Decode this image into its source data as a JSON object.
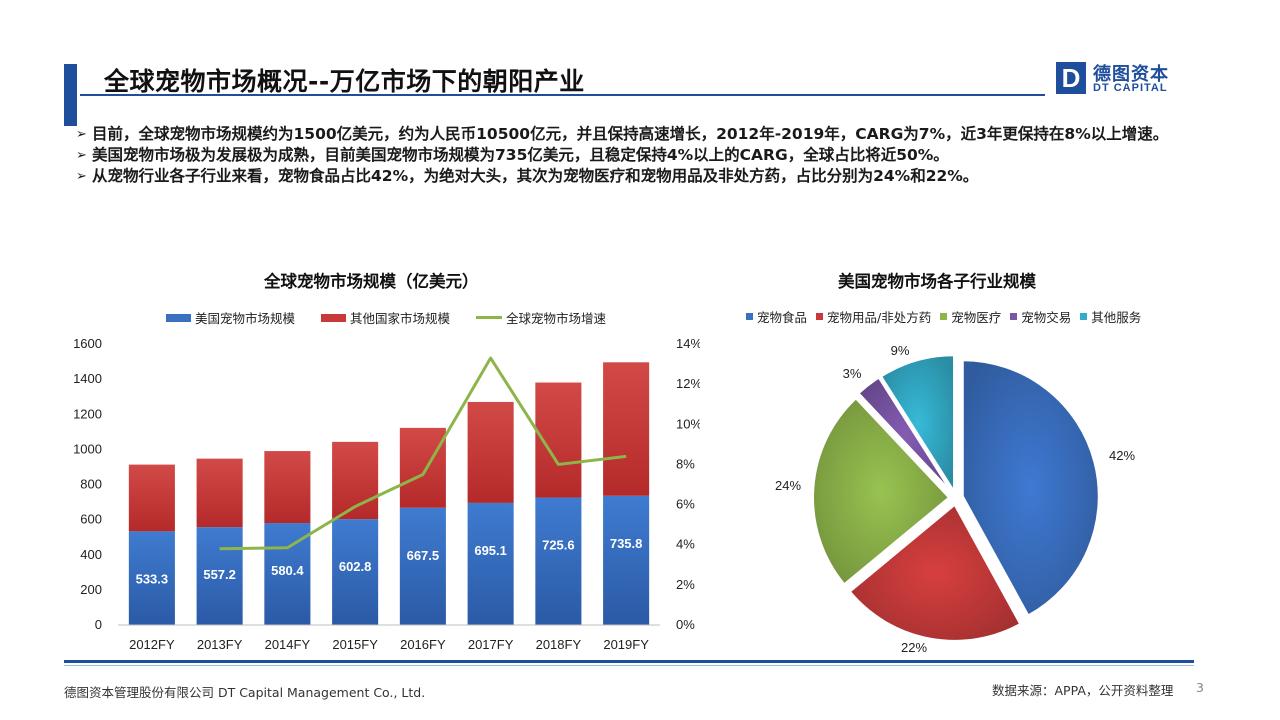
{
  "header": {
    "title": "全球宠物市场概况--万亿市场下的朝阳产业",
    "logo_cn": "德图资本",
    "logo_en": "DT CAPITAL",
    "logo_mark": "D"
  },
  "bullets": [
    "目前，全球宠物市场规模约为1500亿美元，约为人民币10500亿元，并且保持高速增长，2012年-2019年，CARG为7%，近3年更保持在8%以上增速。",
    "美国宠物市场极为发展极为成熟，目前美国宠物市场规模为735亿美元，且稳定保持4%以上的CARG，全球占比将近50%。",
    "从宠物行业各子行业来看，宠物食品占比42%，为绝对大头，其次为宠物医疗和宠物用品及非处方药，占比分别为24%和22%。"
  ],
  "bullet_arrow": "➢",
  "chart_data": [
    {
      "type": "bar",
      "stacked": true,
      "title": "全球宠物市场规模（亿美元）",
      "categories": [
        "2012FY",
        "2013FY",
        "2014FY",
        "2015FY",
        "2016FY",
        "2017FY",
        "2018FY",
        "2019FY"
      ],
      "series": [
        {
          "name": "美国宠物市场规模",
          "values": [
            533.3,
            557.2,
            580.4,
            602.8,
            667.5,
            695.1,
            725.6,
            735.8
          ],
          "color": "#3a70c2",
          "labels": [
            "533.3",
            "557.2",
            "580.4",
            "602.8",
            "667.5",
            "695.1",
            "725.6",
            "735.8"
          ]
        },
        {
          "name": "其他国家市场规模",
          "values": [
            380,
            390,
            410,
            440,
            455,
            575,
            655,
            760
          ],
          "color": "#c83a3a"
        },
        {
          "name": "全球宠物市场增速",
          "type": "line",
          "axis": "right",
          "values": [
            null,
            3.8,
            3.85,
            5.9,
            7.5,
            13.3,
            8.0,
            8.4
          ],
          "color": "#8db54a"
        }
      ],
      "ylim": [
        0,
        1600
      ],
      "yticks": [
        "0",
        "200",
        "400",
        "600",
        "800",
        "1000",
        "1200",
        "1400",
        "1600"
      ],
      "y2lim": [
        0,
        14
      ],
      "y2ticks": [
        "0%",
        "2%",
        "4%",
        "6%",
        "8%",
        "10%",
        "12%",
        "14%"
      ],
      "legend_position": "top",
      "grid": false
    },
    {
      "type": "pie",
      "title": "美国宠物市场各子行业规模",
      "slices": [
        {
          "name": "宠物食品",
          "value": 42,
          "label": "42%",
          "color": "#3a70c2"
        },
        {
          "name": "宠物用品/非处方药",
          "value": 22,
          "label": "22%",
          "color": "#c83a3a"
        },
        {
          "name": "宠物医疗",
          "value": 24,
          "label": "24%",
          "color": "#8db54a"
        },
        {
          "name": "宠物交易",
          "value": 3,
          "label": "3%",
          "color": "#7a55a6"
        },
        {
          "name": "其他服务",
          "value": 9,
          "label": "9%",
          "color": "#33acc8"
        }
      ],
      "legend_position": "top"
    }
  ],
  "footer": {
    "company": "德图资本管理股份有限公司 DT Capital Management Co., Ltd.",
    "source": "数据来源：APPA，公开资料整理",
    "page": "3"
  }
}
